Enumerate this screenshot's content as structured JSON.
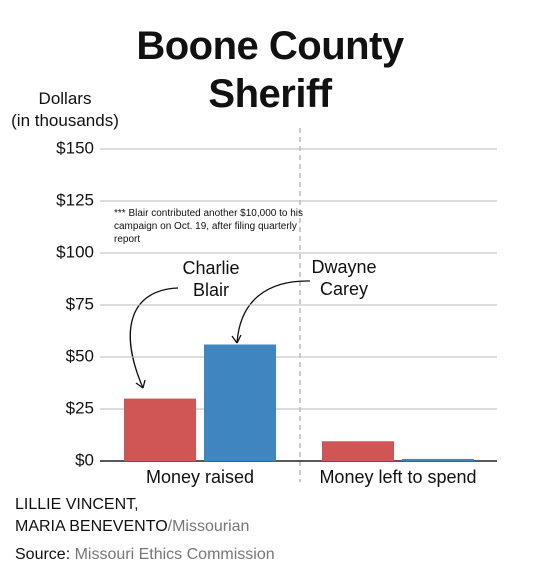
{
  "chart_data": {
    "type": "bar",
    "title": "Boone County Sheriff",
    "ylabel": [
      "Dollars",
      "(in thousands)"
    ],
    "annotation": "*** Blair contributed another $10,000 to his campaign on Oct. 19, after filing quarterly report",
    "categories": [
      "Money raised",
      "Money left to spend"
    ],
    "series": [
      {
        "name": "Charlie Blair",
        "color": "#d05656",
        "values": [
          30,
          9.5
        ]
      },
      {
        "name": "Dwayne Carey",
        "color": "#3f86c0",
        "values": [
          56,
          1
        ]
      }
    ],
    "ylim": [
      0,
      150
    ],
    "yticks": [
      {
        "value": 0,
        "label": "$0"
      },
      {
        "value": 25,
        "label": "$25"
      },
      {
        "value": 50,
        "label": "$50"
      },
      {
        "value": 75,
        "label": "$75"
      },
      {
        "value": 100,
        "label": "$100"
      },
      {
        "value": 125,
        "label": "$125"
      },
      {
        "value": 150,
        "label": "$150"
      }
    ],
    "grid": true
  },
  "credit": {
    "authors": [
      "LILLIE VINCENT,",
      "MARIA BENEVENTO"
    ],
    "outlet": "/Missourian"
  },
  "source": {
    "label": "Source:",
    "text": "Missouri Ethics Commission"
  }
}
